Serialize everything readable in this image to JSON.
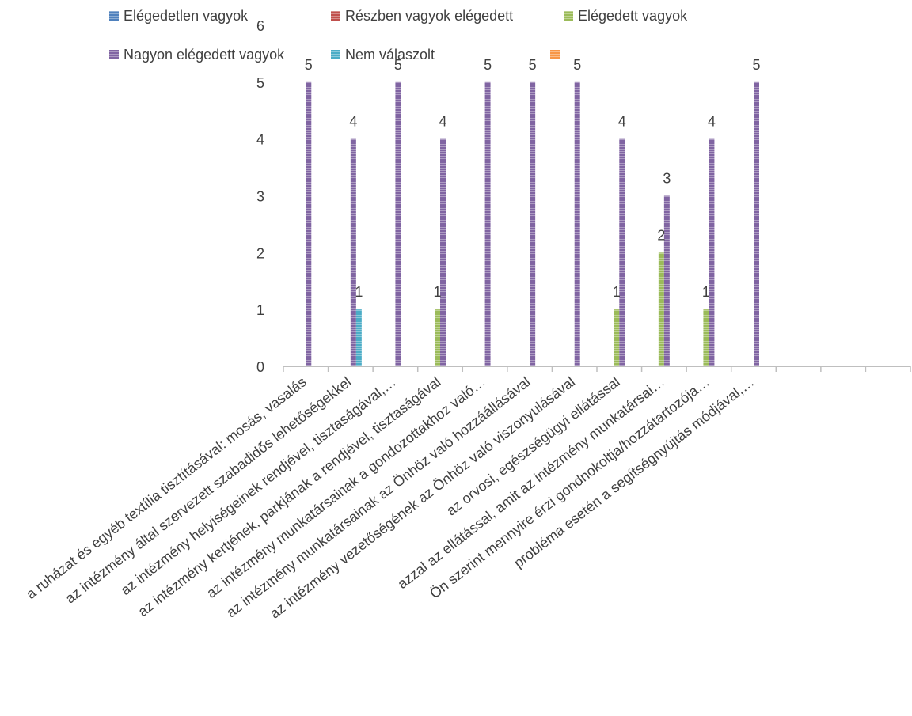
{
  "chart_data": {
    "type": "bar",
    "ylim": [
      0,
      6
    ],
    "yticks": [
      "0",
      "1",
      "2",
      "3",
      "4",
      "5",
      "6"
    ],
    "grid": false,
    "legend_position": "top",
    "categories": [
      "a ruházat és egyéb textília tisztításával: mosás, vasalás",
      "az intézmény által szervezett szabadidős lehetőségekkel",
      "az intézmény helyiségeinek rendjével, tisztaságával,…",
      "az intézmény kertjének, parkjának a rendjével, tisztaságával",
      "az intézmény munkatársainak a gondozottakhoz való…",
      "az intézmény munkatársainak az Önhöz való hozzáállásával",
      "az intézmény vezetőségének az Önhöz való viszonyulásával",
      "az orvosi, egészségügyi ellátással",
      "azzal az ellátással, amit az intézmény munkatársai…",
      "Ön szerint mennyire érzi gondnokoltja/hozzátartozója…",
      "probléma esetén a segítségnyújtás módjával,…",
      "",
      "",
      ""
    ],
    "series": [
      {
        "name": "Elégedetlen vagyok",
        "color": "#4f81bd",
        "values": [
          null,
          null,
          null,
          null,
          null,
          null,
          null,
          null,
          null,
          null,
          null,
          null,
          null,
          null
        ]
      },
      {
        "name": "Részben vagyok elégedett",
        "color": "#c0504d",
        "values": [
          null,
          null,
          null,
          null,
          null,
          null,
          null,
          null,
          null,
          null,
          null,
          null,
          null,
          null
        ]
      },
      {
        "name": "Elégedett vagyok",
        "color": "#9bbb59",
        "values": [
          null,
          null,
          null,
          1,
          null,
          null,
          null,
          1,
          2,
          1,
          null,
          null,
          null,
          null
        ]
      },
      {
        "name": "Nagyon elégedett vagyok",
        "color": "#8064a2",
        "values": [
          5,
          4,
          5,
          4,
          5,
          5,
          5,
          4,
          3,
          4,
          5,
          null,
          null,
          null
        ]
      },
      {
        "name": "Nem válaszolt",
        "color": "#4bacc6",
        "values": [
          null,
          1,
          null,
          null,
          null,
          null,
          null,
          null,
          null,
          null,
          null,
          null,
          null,
          null
        ]
      },
      {
        "name": "",
        "color": "#f79646",
        "values": [
          null,
          null,
          null,
          null,
          null,
          null,
          null,
          null,
          null,
          null,
          null,
          null,
          null,
          null
        ]
      }
    ]
  }
}
